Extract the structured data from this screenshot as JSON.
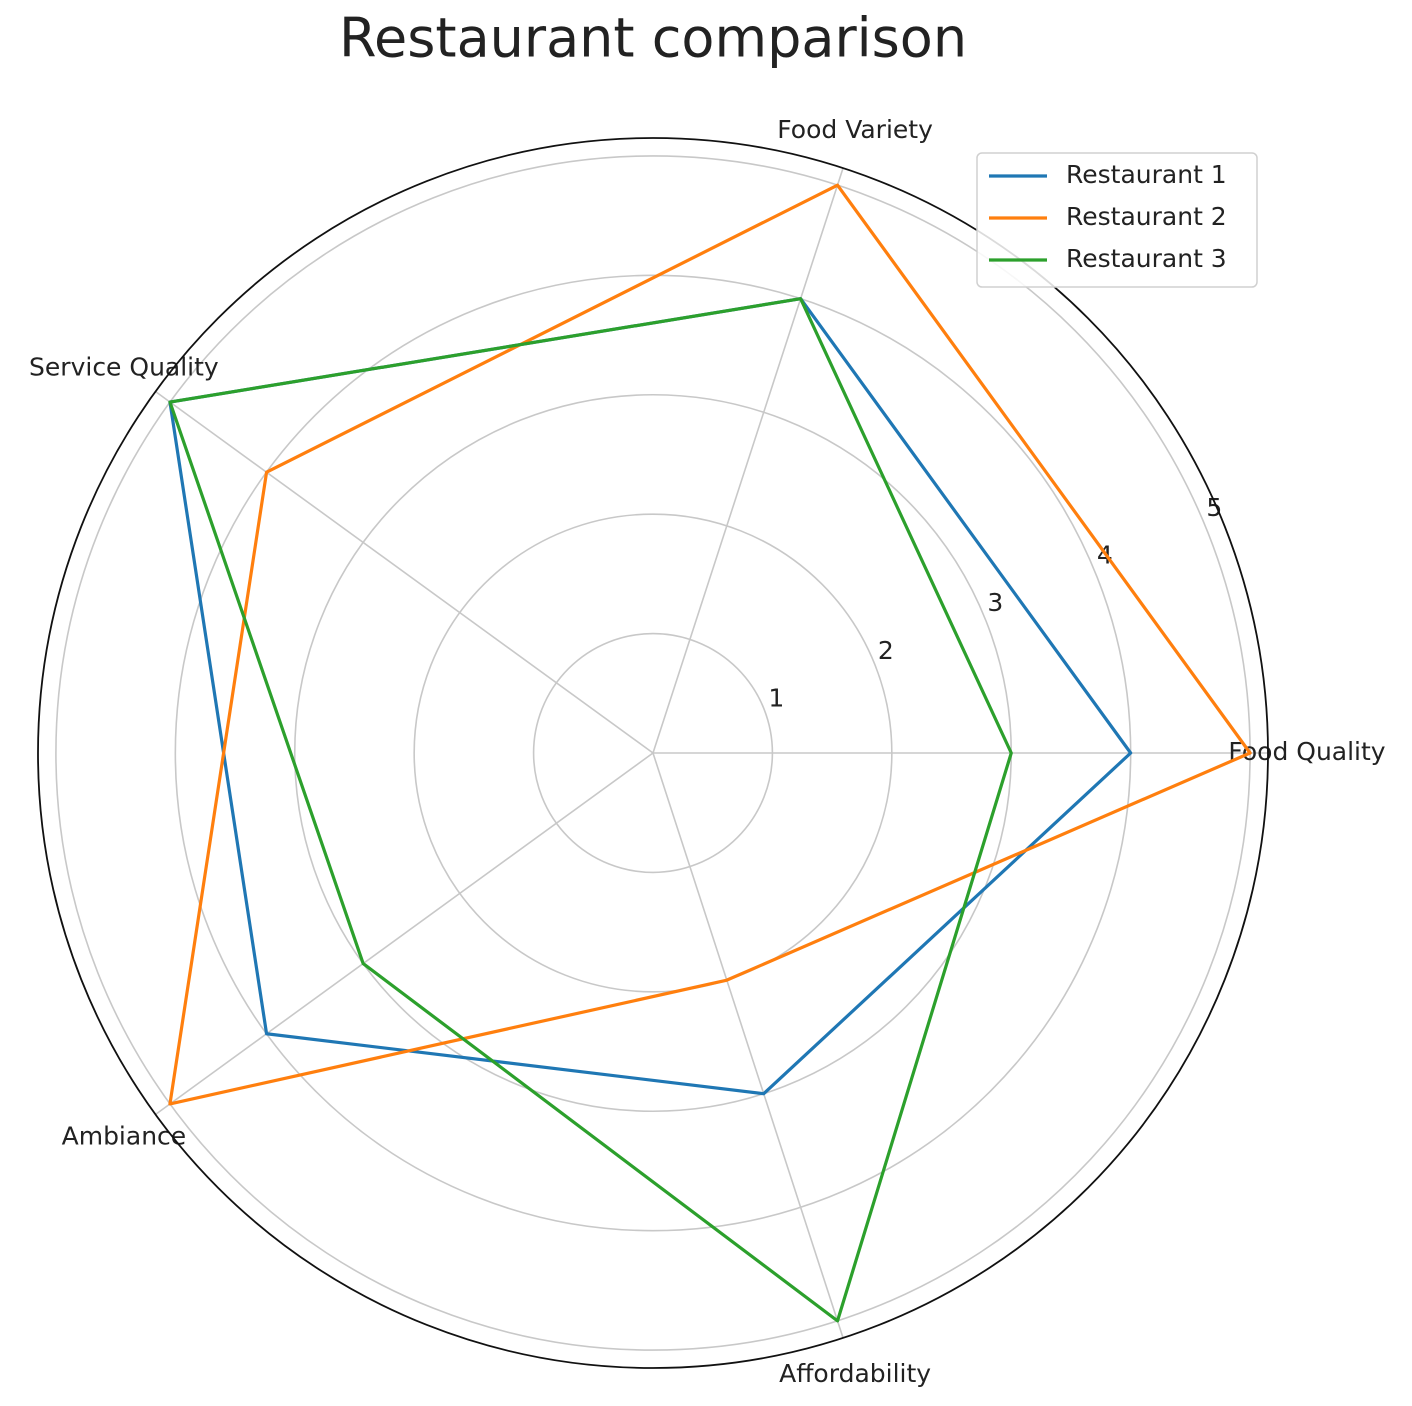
{
  "chart_data": {
    "type": "radar",
    "title": "Restaurant comparison",
    "categories": [
      "Food Quality",
      "Food Variety",
      "Service Quality",
      "Ambiance",
      "Affordability"
    ],
    "series": [
      {
        "name": "Restaurant 1",
        "color": "#1f77b4",
        "values": [
          4,
          4,
          5,
          4,
          3
        ]
      },
      {
        "name": "Restaurant 2",
        "color": "#ff7f0e",
        "values": [
          5,
          5,
          4,
          5,
          2
        ]
      },
      {
        "name": "Restaurant 3",
        "color": "#2ca02c",
        "values": [
          3,
          4,
          5,
          3,
          5
        ]
      }
    ],
    "ylim": [
      0,
      5.15
    ],
    "yticks": [
      1,
      2,
      3,
      4,
      5
    ],
    "grid": true,
    "legend": "upper right"
  }
}
